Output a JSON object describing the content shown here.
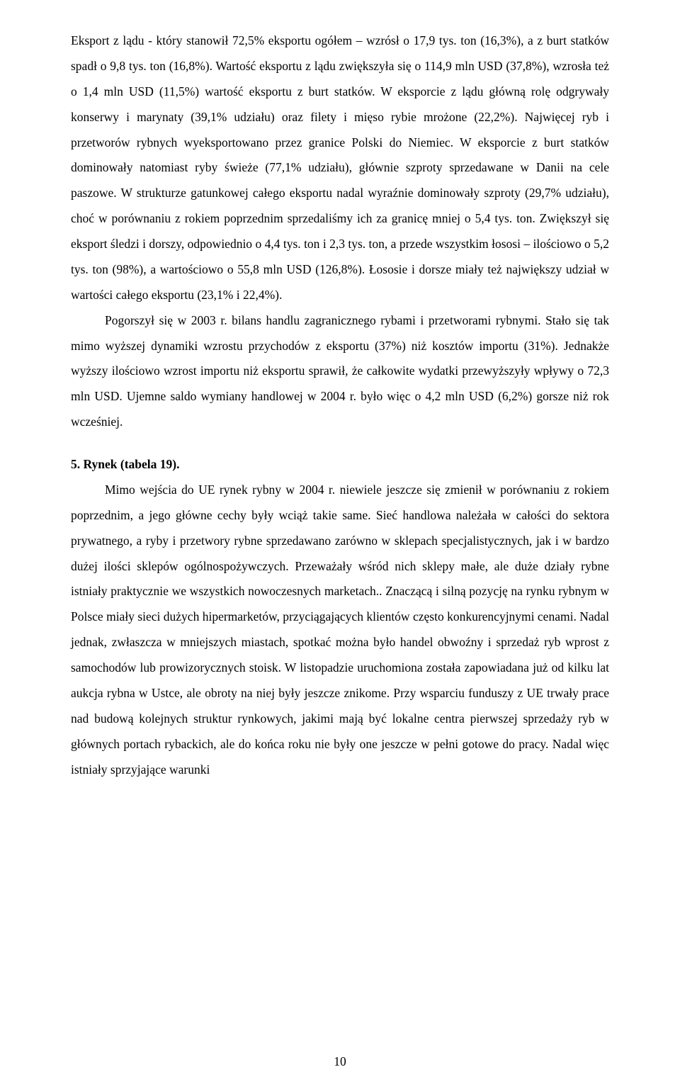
{
  "para1": "Eksport z lądu - który stanowił 72,5% eksportu ogółem – wzrósł o 17,9 tys. ton (16,3%), a z burt statków spadł o 9,8 tys. ton (16,8%). Wartość eksportu z lądu zwiększyła się o 114,9 mln USD (37,8%), wzrosła też o 1,4 mln USD (11,5%) wartość eksportu z burt statków. W eksporcie z lądu główną rolę odgrywały konserwy i marynaty (39,1% udziału) oraz filety i mięso rybie mrożone (22,2%). Najwięcej ryb i przetworów rybnych wyeksportowano przez granice Polski do Niemiec. W eksporcie z burt statków dominowały natomiast ryby świeże (77,1% udziału), głównie szproty sprzedawane w Danii na cele paszowe. W strukturze gatunkowej całego eksportu nadal wyraźnie dominowały szproty (29,7% udziału), choć w porównaniu z rokiem poprzednim sprzedaliśmy ich za granicę mniej o 5,4 tys. ton. Zwiększył się eksport śledzi i dorszy, odpowiednio o 4,4 tys. ton i 2,3 tys. ton, a przede wszystkim łososi – ilościowo o 5,2 tys. ton (98%), a wartościowo o 55,8 mln USD (126,8%). Łososie i dorsze miały też największy udział w wartości całego eksportu (23,1% i 22,4%).",
  "para2": "Pogorszył się w 2003 r. bilans handlu zagranicznego rybami i przetworami rybnymi. Stało się tak mimo wyższej dynamiki wzrostu przychodów z eksportu (37%) niż kosztów importu (31%). Jednakże wyższy ilościowo wzrost importu niż eksportu sprawił, że całkowite wydatki przewyższyły wpływy o 72,3 mln USD. Ujemne saldo wymiany handlowej w 2004 r. było więc o 4,2 mln USD (6,2%) gorsze niż rok wcześniej.",
  "section_heading": "5. Rynek (tabela 19).",
  "para3": "Mimo wejścia do UE rynek rybny w 2004 r. niewiele jeszcze się zmienił w porównaniu z rokiem poprzednim, a jego główne cechy były wciąż takie same. Sieć handlowa należała w całości do sektora prywatnego, a ryby i przetwory rybne sprzedawano zarówno w sklepach specjalistycznych, jak i w bardzo dużej ilości sklepów ogólnospożywczych. Przeważały wśród nich sklepy małe, ale duże działy rybne istniały praktycznie we wszystkich nowoczesnych marketach.. Znaczącą i silną pozycję na rynku rybnym w Polsce miały sieci dużych hipermarketów, przyciągających klientów często konkurencyjnymi cenami. Nadal jednak, zwłaszcza w mniejszych miastach, spotkać można było handel obwoźny i sprzedaż ryb wprost z samochodów lub prowizorycznych stoisk. W listopadzie uruchomiona została zapowiadana już od kilku lat aukcja rybna w Ustce, ale obroty na niej były jeszcze znikome. Przy wsparciu funduszy z UE trwały prace nad budową kolejnych struktur rynkowych, jakimi mają być lokalne centra pierwszej sprzedaży ryb w głównych portach rybackich, ale do końca roku nie były one jeszcze w pełni gotowe do pracy. Nadal więc istniały sprzyjające warunki",
  "page_number": "10"
}
